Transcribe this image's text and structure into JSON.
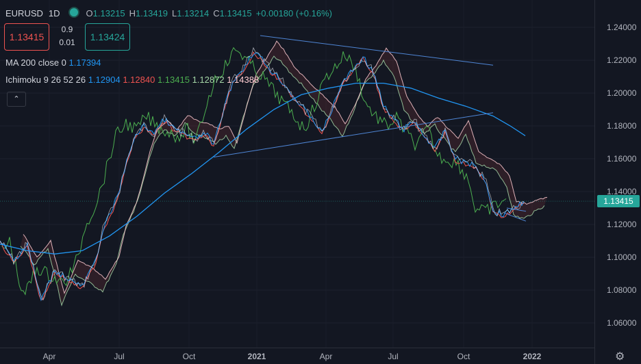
{
  "header": {
    "symbol": "EURUSD",
    "timeframe": "1D",
    "open_label": "O",
    "open": "1.13215",
    "high_label": "H",
    "high": "1.13419",
    "low_label": "L",
    "low": "1.13214",
    "close_label": "C",
    "close": "1.13415",
    "change": "+0.00180 (+0.16%)"
  },
  "trade": {
    "sell": "1.13415",
    "spread_top": "0.9",
    "spread_bottom": "0.01",
    "buy": "1.13424"
  },
  "indicators": {
    "ma_label": "MA 200 close 0",
    "ma_value": "1.17394",
    "ichimoku_label": "Ichimoku 9 26 52 26",
    "ichimoku_values": [
      "1.12904",
      "1.12840",
      "1.13415",
      "1.12872",
      "1.14388"
    ]
  },
  "collapse_glyph": "⌃",
  "price_tag": "1.13415",
  "colors": {
    "bg": "#131722",
    "up": "#26a69a",
    "down": "#ef5350",
    "ma": "#2196f3",
    "trend": "#4f86d6",
    "tenkan": "#2196f3",
    "kijun": "#ef5350",
    "chikou": "#4caf50",
    "spanA": "#a5d6a7",
    "spanB": "#ffcdd2"
  },
  "chart_data": {
    "type": "line",
    "y_axis_ticks": [
      "1.24000",
      "1.22000",
      "1.20000",
      "1.18000",
      "1.16000",
      "1.14000",
      "1.12000",
      "1.10000",
      "1.08000",
      "1.06000"
    ],
    "x_axis_ticks": [
      "Apr",
      "Jul",
      "Oct",
      "2021",
      "Apr",
      "Jul",
      "Oct",
      "2022"
    ],
    "ylim": [
      1.052,
      1.252
    ],
    "series": [
      {
        "values": [
          {
            "x": 0,
            "y": 1.11
          },
          {
            "x": 20,
            "y": 1.098
          },
          {
            "x": 40,
            "y": 1.108
          },
          {
            "x": 60,
            "y": 1.074
          },
          {
            "x": 80,
            "y": 1.092
          },
          {
            "x": 100,
            "y": 1.087
          },
          {
            "x": 120,
            "y": 1.082
          },
          {
            "x": 140,
            "y": 1.098
          },
          {
            "x": 150,
            "y": 1.117
          },
          {
            "x": 165,
            "y": 1.13
          },
          {
            "x": 175,
            "y": 1.142
          },
          {
            "x": 185,
            "y": 1.158
          },
          {
            "x": 195,
            "y": 1.172
          },
          {
            "x": 210,
            "y": 1.18
          },
          {
            "x": 225,
            "y": 1.176
          },
          {
            "x": 240,
            "y": 1.184
          },
          {
            "x": 255,
            "y": 1.178
          },
          {
            "x": 270,
            "y": 1.175
          },
          {
            "x": 285,
            "y": 1.172
          },
          {
            "x": 300,
            "y": 1.176
          },
          {
            "x": 312,
            "y": 1.168
          },
          {
            "x": 325,
            "y": 1.188
          },
          {
            "x": 340,
            "y": 1.207
          },
          {
            "x": 355,
            "y": 1.215
          },
          {
            "x": 370,
            "y": 1.225
          },
          {
            "x": 380,
            "y": 1.222
          },
          {
            "x": 395,
            "y": 1.214
          },
          {
            "x": 410,
            "y": 1.208
          },
          {
            "x": 425,
            "y": 1.2
          },
          {
            "x": 440,
            "y": 1.192
          },
          {
            "x": 455,
            "y": 1.185
          },
          {
            "x": 470,
            "y": 1.176
          },
          {
            "x": 485,
            "y": 1.19
          },
          {
            "x": 500,
            "y": 1.207
          },
          {
            "x": 515,
            "y": 1.214
          },
          {
            "x": 530,
            "y": 1.222
          },
          {
            "x": 545,
            "y": 1.213
          },
          {
            "x": 560,
            "y": 1.192
          },
          {
            "x": 575,
            "y": 1.184
          },
          {
            "x": 590,
            "y": 1.178
          },
          {
            "x": 605,
            "y": 1.183
          },
          {
            "x": 620,
            "y": 1.174
          },
          {
            "x": 635,
            "y": 1.166
          },
          {
            "x": 650,
            "y": 1.177
          },
          {
            "x": 665,
            "y": 1.16
          },
          {
            "x": 680,
            "y": 1.158
          },
          {
            "x": 695,
            "y": 1.155
          },
          {
            "x": 710,
            "y": 1.146
          },
          {
            "x": 720,
            "y": 1.128
          },
          {
            "x": 735,
            "y": 1.126
          },
          {
            "x": 750,
            "y": 1.13
          },
          {
            "x": 765,
            "y": 1.134
          }
        ]
      },
      {
        "values": [
          {
            "x": 0,
            "y": 1.108
          },
          {
            "x": 40,
            "y": 1.104
          },
          {
            "x": 80,
            "y": 1.102
          },
          {
            "x": 120,
            "y": 1.104
          },
          {
            "x": 160,
            "y": 1.113
          },
          {
            "x": 200,
            "y": 1.125
          },
          {
            "x": 240,
            "y": 1.139
          },
          {
            "x": 280,
            "y": 1.151
          },
          {
            "x": 320,
            "y": 1.164
          },
          {
            "x": 360,
            "y": 1.178
          },
          {
            "x": 400,
            "y": 1.19
          },
          {
            "x": 440,
            "y": 1.199
          },
          {
            "x": 480,
            "y": 1.203
          },
          {
            "x": 520,
            "y": 1.206
          },
          {
            "x": 560,
            "y": 1.206
          },
          {
            "x": 600,
            "y": 1.203
          },
          {
            "x": 640,
            "y": 1.197
          },
          {
            "x": 680,
            "y": 1.192
          },
          {
            "x": 720,
            "y": 1.186
          },
          {
            "x": 745,
            "y": 1.18
          },
          {
            "x": 767,
            "y": 1.174
          }
        ]
      },
      {
        "values": [
          {
            "x": 380,
            "y": 1.235
          },
          {
            "x": 720,
            "y": 1.217
          }
        ]
      },
      {
        "values": [
          {
            "x": 312,
            "y": 1.161
          },
          {
            "x": 720,
            "y": 1.188
          }
        ]
      },
      {
        "values": [
          {
            "x": 740,
            "y": 1.13
          },
          {
            "x": 768,
            "y": 1.128
          }
        ]
      },
      {
        "values": [
          {
            "x": 736,
            "y": 1.127
          },
          {
            "x": 768,
            "y": 1.122
          }
        ]
      }
    ]
  }
}
